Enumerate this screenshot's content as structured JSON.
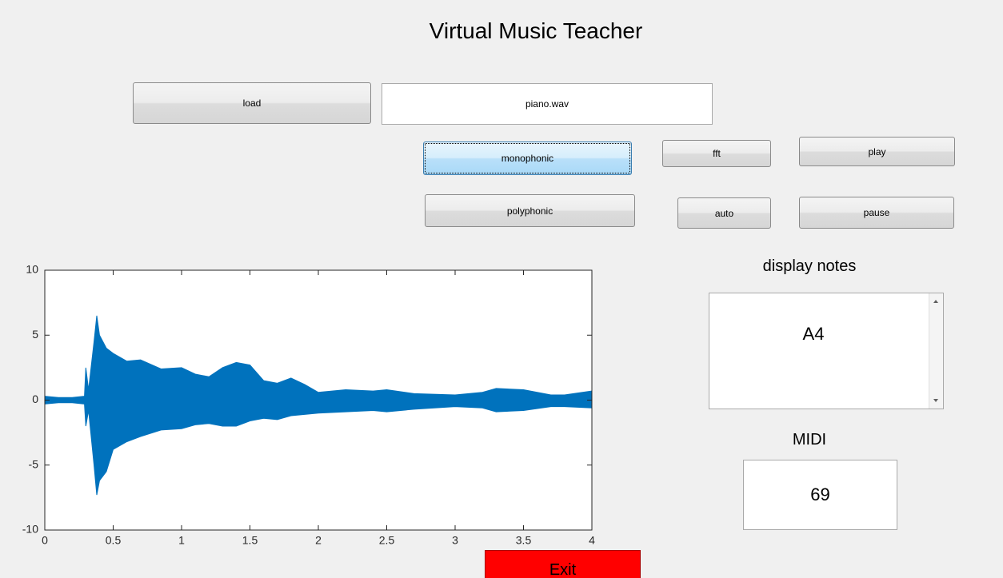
{
  "window": {
    "title": "Virtual Music Teacher"
  },
  "controls": {
    "load": "load",
    "file": "piano.wav",
    "monophonic": "monophonic",
    "fft": "fft",
    "play": "play",
    "polyphonic": "polyphonic",
    "auto": "auto",
    "pause": "pause",
    "exit": "Exit"
  },
  "notes": {
    "label": "display notes",
    "value": "A4"
  },
  "midi": {
    "label": "MIDI",
    "value": "69"
  },
  "chart_data": {
    "type": "area",
    "x": [
      0,
      0.1,
      0.2,
      0.29,
      0.3,
      0.32,
      0.36,
      0.38,
      0.4,
      0.45,
      0.5,
      0.6,
      0.7,
      0.85,
      1.0,
      1.1,
      1.2,
      1.3,
      1.4,
      1.5,
      1.6,
      1.7,
      1.8,
      1.9,
      2.0,
      2.2,
      2.4,
      2.5,
      2.7,
      3.0,
      3.2,
      3.3,
      3.5,
      3.7,
      3.8,
      4.0
    ],
    "series": [
      {
        "color": "#0072bd",
        "values": [
          0.3,
          0.2,
          0.2,
          0.3,
          2.5,
          0.8,
          4.5,
          6.5,
          5.0,
          4.0,
          3.6,
          3.0,
          3.1,
          2.4,
          2.5,
          2.0,
          1.8,
          2.5,
          2.9,
          2.7,
          1.5,
          1.3,
          1.7,
          1.2,
          0.6,
          0.8,
          0.7,
          0.8,
          0.5,
          0.4,
          0.6,
          0.9,
          0.8,
          0.4,
          0.4,
          0.7
        ]
      },
      {
        "color": "#0072bd",
        "values": [
          -0.3,
          -0.2,
          -0.2,
          -0.3,
          -2.0,
          -0.8,
          -5.0,
          -7.3,
          -6.2,
          -5.5,
          -3.8,
          -3.2,
          -2.8,
          -2.3,
          -2.2,
          -1.9,
          -1.8,
          -2.0,
          -2.0,
          -1.6,
          -1.4,
          -1.5,
          -1.2,
          -1.1,
          -1.0,
          -0.9,
          -0.8,
          -0.9,
          -0.7,
          -0.5,
          -0.6,
          -0.9,
          -0.8,
          -0.5,
          -0.5,
          -0.6
        ]
      }
    ],
    "xlim": [
      0,
      4
    ],
    "xticks": [
      0,
      0.5,
      1,
      1.5,
      2,
      2.5,
      3,
      3.5,
      4
    ],
    "ylim": [
      -10,
      10
    ],
    "yticks": [
      -10,
      -5,
      0,
      5,
      10
    ]
  }
}
